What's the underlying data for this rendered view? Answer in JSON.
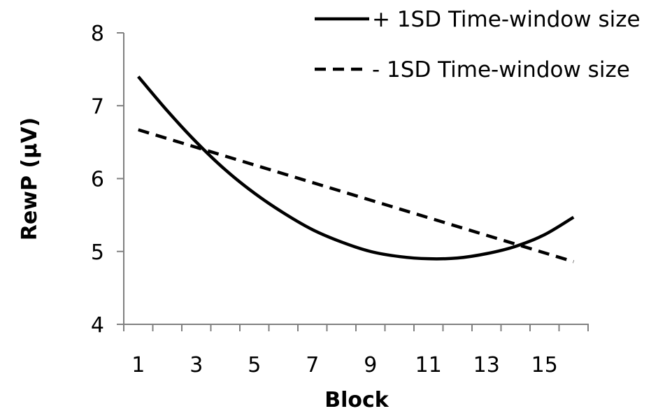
{
  "chart_data": {
    "type": "line",
    "xlabel": "Block",
    "ylabel": "RewP (μV)",
    "xlim": [
      1,
      16
    ],
    "ylim": [
      4,
      8
    ],
    "x_ticks": [
      1,
      3,
      5,
      7,
      9,
      11,
      13,
      15
    ],
    "y_ticks": [
      4,
      5,
      6,
      7,
      8
    ],
    "grid": false,
    "legend": "top-right",
    "series": [
      {
        "name": "+ 1SD Time-window size",
        "style": "solid",
        "color": "#000000",
        "x": [
          1,
          2,
          3,
          4,
          5,
          6,
          7,
          8,
          9,
          10,
          11,
          12,
          13,
          14,
          15,
          16
        ],
        "values": [
          7.4,
          6.93,
          6.5,
          6.12,
          5.8,
          5.53,
          5.3,
          5.13,
          5.0,
          4.93,
          4.9,
          4.91,
          4.97,
          5.07,
          5.23,
          5.47
        ]
      },
      {
        "name": "- 1SD Time-window size",
        "style": "dashed",
        "color": "#000000",
        "x": [
          1,
          16
        ],
        "values": [
          6.67,
          4.86
        ]
      }
    ]
  }
}
